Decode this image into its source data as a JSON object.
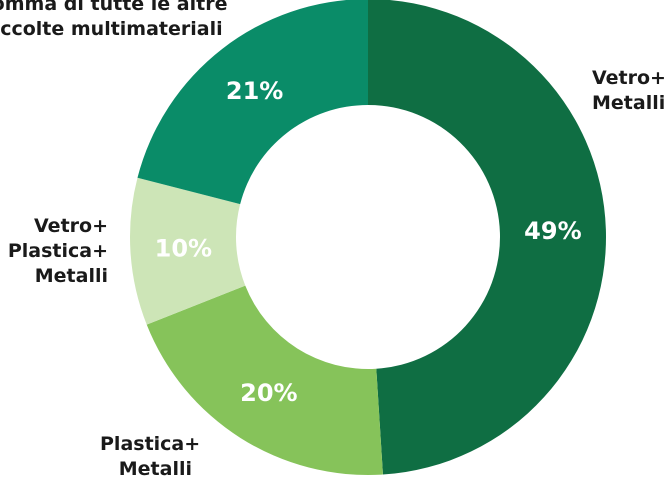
{
  "chart_data": {
    "type": "pie",
    "donut": true,
    "title": "",
    "categories": [
      "Vetro+ Metalli",
      "Plastica+ Metalli",
      "Vetro+ Plastica+ Metalli",
      "Somma di tutte le altre raccolte multimateriali"
    ],
    "values": [
      49,
      20,
      10,
      21
    ],
    "value_labels": [
      "49%",
      "20%",
      "10%",
      "21%"
    ],
    "colors": [
      "#0f6e43",
      "#86c35a",
      "#cde5b7",
      "#0a8c68"
    ],
    "label_lines": [
      [
        "Vetro+",
        "Metalli"
      ],
      [
        "Plastica+",
        "Metalli"
      ],
      [
        "Vetro+",
        "Plastica+",
        "Metalli"
      ],
      [
        "Somma di tutte le altre",
        "raccolte multimateriali"
      ]
    ]
  }
}
